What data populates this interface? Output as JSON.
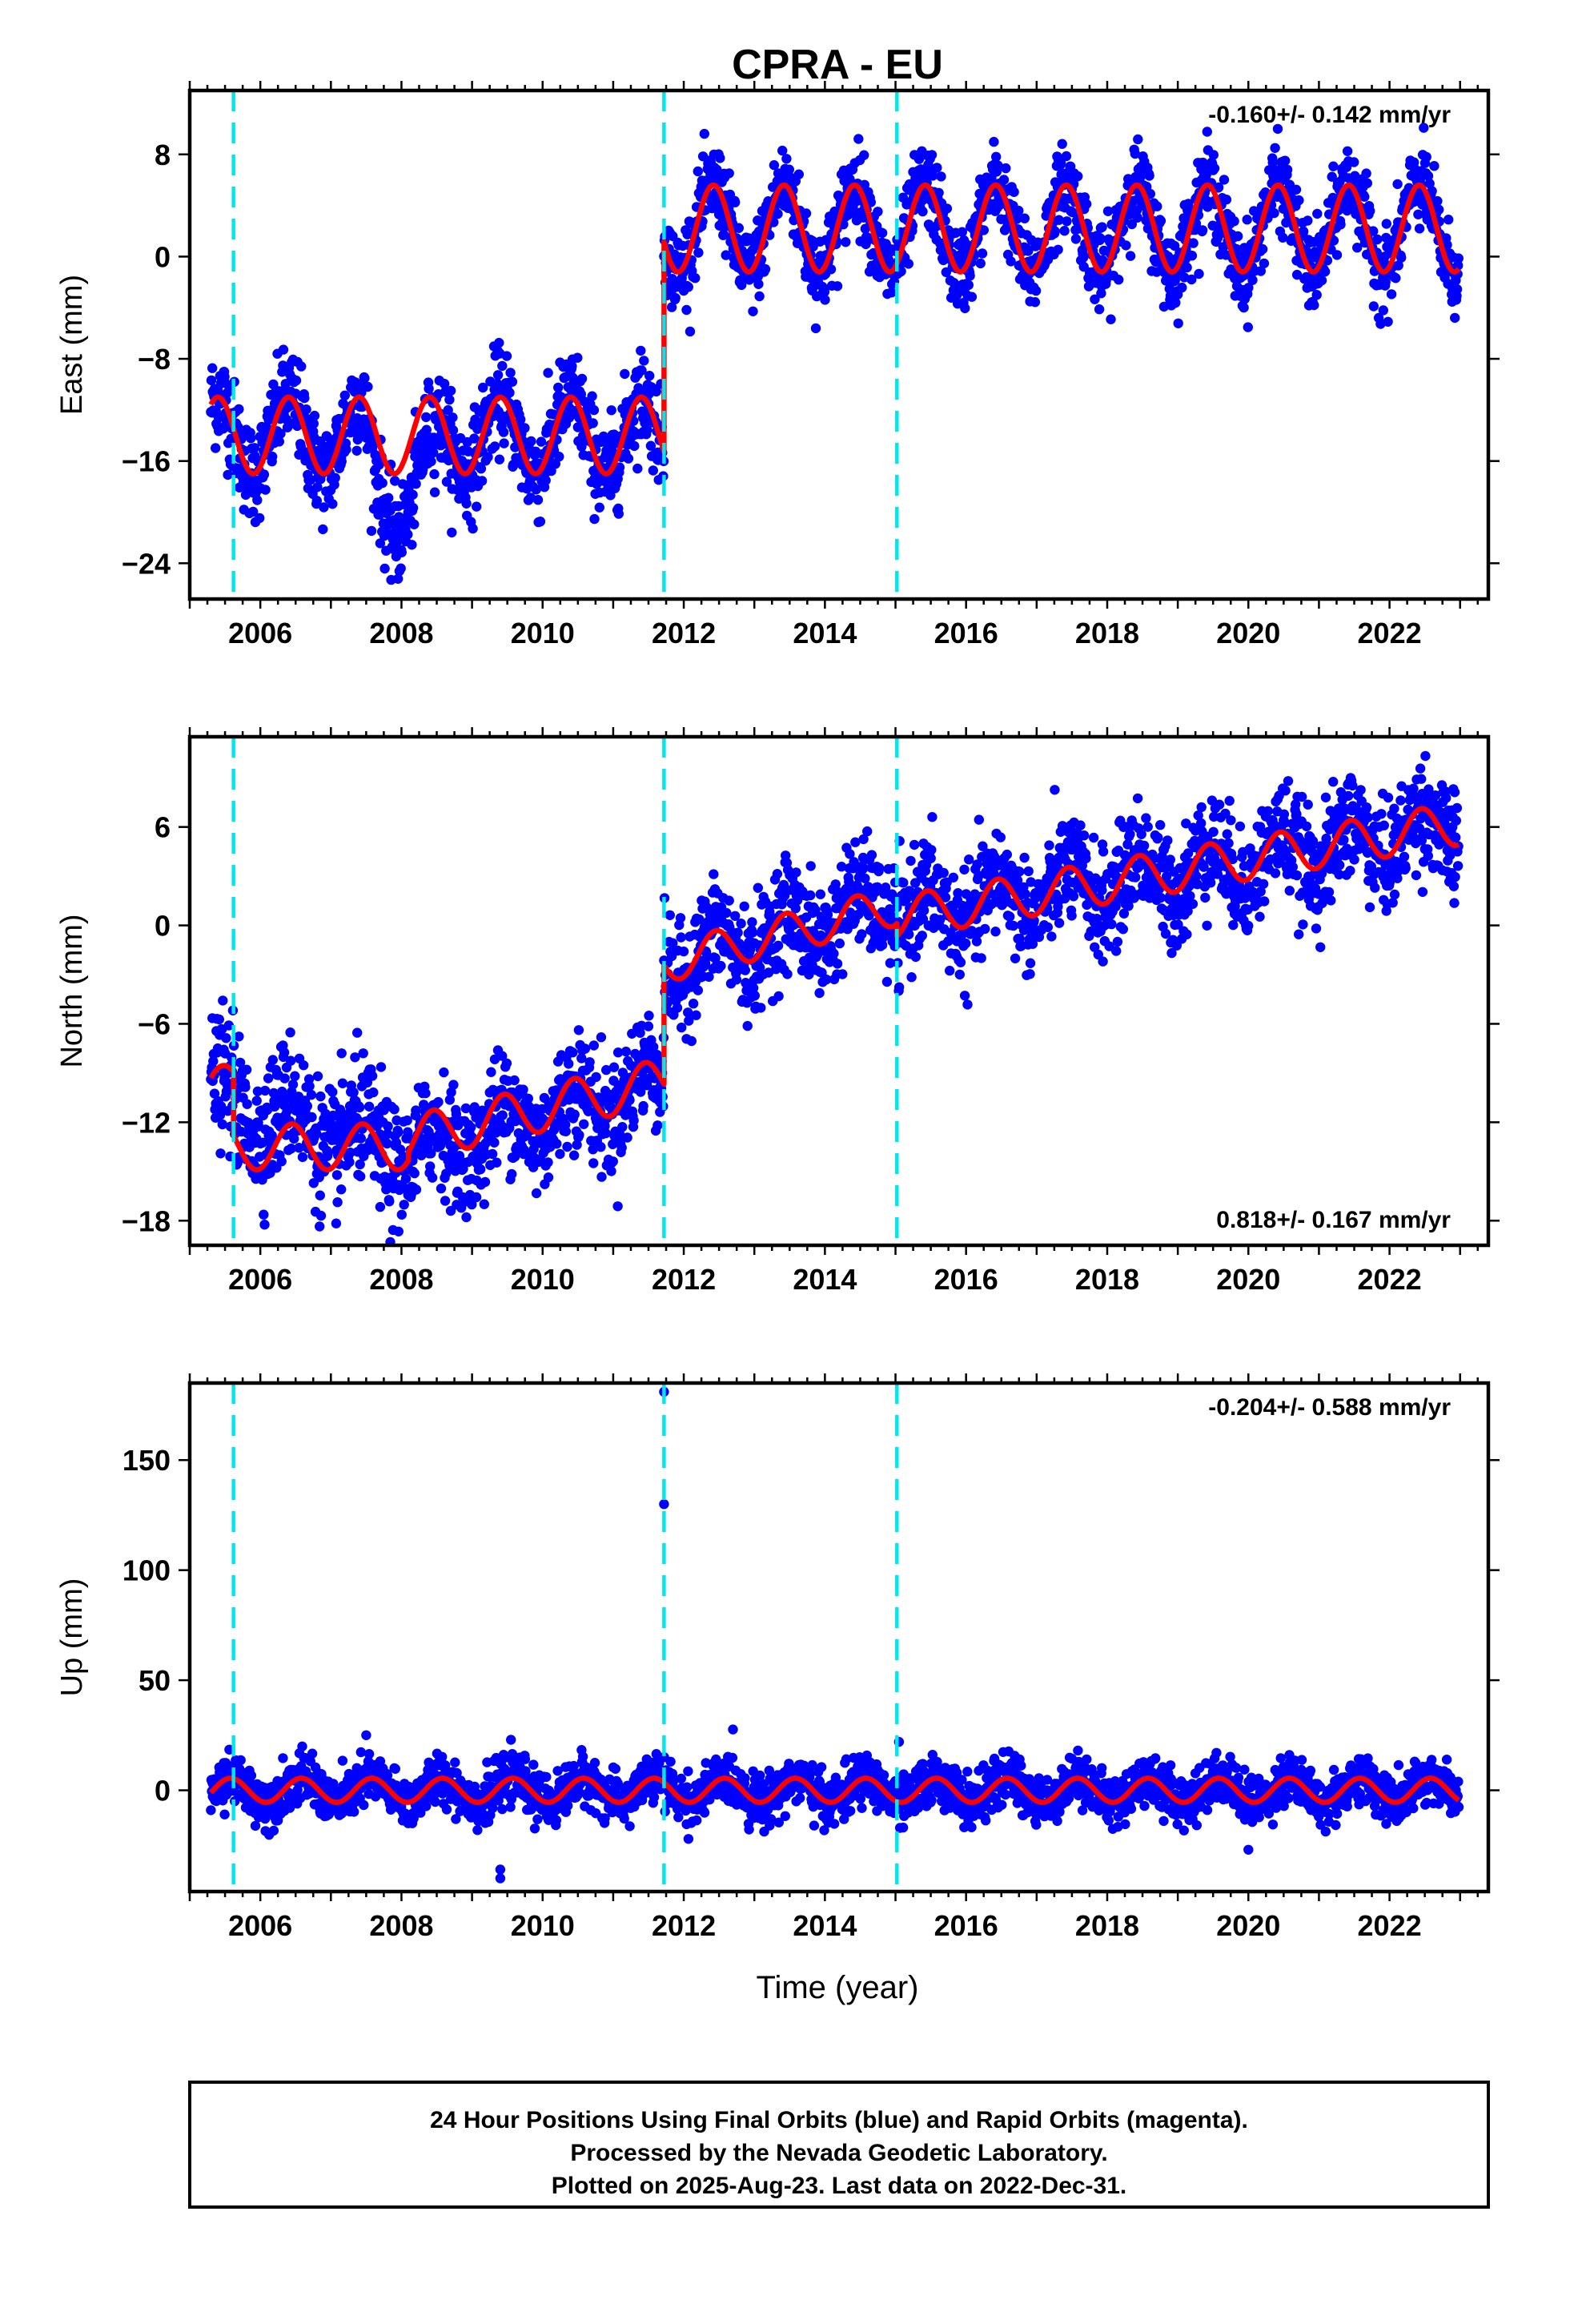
{
  "title": "CPRA - EU",
  "xlabel": "Time (year)",
  "colors": {
    "points": "#0000ff",
    "model": "#ff0000",
    "breaks": "#00e8ee",
    "frame": "#000000"
  },
  "x_ticks": [
    2006,
    2008,
    2010,
    2012,
    2014,
    2016,
    2018,
    2020,
    2022
  ],
  "caption": {
    "line1": "24 Hour Positions Using Final Orbits (blue) and Rapid Orbits (magenta).",
    "line2": "Processed by the Nevada Geodetic Laboratory.",
    "line3": "Plotted on 2025-Aug-23. Last data on 2022-Dec-31."
  },
  "chart_data": [
    {
      "type": "scatter",
      "ylabel": "East (mm)",
      "rate_text": "-0.160+/- 0.142 mm/yr",
      "rate_position": "top-right",
      "xlim": [
        2005.0,
        2023.4
      ],
      "ylim": [
        -26.8,
        13.0
      ],
      "y_ticks": [
        8,
        0,
        -8,
        -16,
        -24
      ],
      "breaks": [
        2005.62,
        2011.72,
        2015.02
      ],
      "data_span": [
        2005.3,
        2022.98
      ],
      "grid": false,
      "series": [
        {
          "role": "daily positions",
          "color": "#0000ff",
          "segments": [
            {
              "from": 2005.3,
              "to": 2011.72,
              "offset": -14.0,
              "amplitude": 3.0,
              "peak_phase": 0.4,
              "noise": 1.9
            },
            {
              "from": 2011.72,
              "to": 2022.98,
              "offset": 2.2,
              "amplitude": 3.4,
              "peak_phase": 0.42,
              "noise": 1.6
            }
          ],
          "anomaly": {
            "from": 2007.4,
            "to": 2008.6,
            "shift": -5.0,
            "note": "2008 excursion down to about -26"
          }
        },
        {
          "role": "model fit",
          "color": "#ff0000",
          "segments": [
            {
              "from": 2005.3,
              "to": 2011.72,
              "offset": -14.0,
              "amplitude": 3.0,
              "peak_phase": 0.4
            },
            {
              "from": 2011.72,
              "to": 2022.98,
              "offset": 2.2,
              "amplitude": 3.4,
              "peak_phase": 0.42
            }
          ]
        }
      ]
    },
    {
      "type": "scatter",
      "ylabel": "North (mm)",
      "rate_text": "0.818+/- 0.167 mm/yr",
      "rate_position": "bottom-right",
      "xlim": [
        2005.0,
        2023.4
      ],
      "ylim": [
        -19.5,
        11.5
      ],
      "y_ticks": [
        6,
        0,
        -6,
        -12,
        -18
      ],
      "breaks": [
        2005.62,
        2011.72,
        2015.02
      ],
      "data_span": [
        2005.3,
        2022.98
      ],
      "grid": false,
      "series": [
        {
          "role": "daily positions",
          "color": "#0000ff",
          "segments": [
            {
              "from": 2005.3,
              "to": 2008.1,
              "start_value": -10.5,
              "end_value": -14.0,
              "amplitude": 1.4,
              "peak_phase": 0.45,
              "noise": 1.9
            },
            {
              "from": 2008.1,
              "to": 2011.72,
              "start_value": -14.0,
              "end_value": -9.5,
              "amplitude": 1.4,
              "peak_phase": 0.45,
              "noise": 1.7
            },
            {
              "from": 2011.72,
              "to": 2015.02,
              "start_value": -2.5,
              "end_value": 1.5,
              "amplitude": 1.3,
              "peak_phase": 0.45,
              "noise": 1.6
            },
            {
              "from": 2015.02,
              "to": 2022.98,
              "start_value": 0.5,
              "end_value": 6.0,
              "amplitude": 1.4,
              "peak_phase": 0.45,
              "noise": 1.6
            }
          ]
        },
        {
          "role": "model fit",
          "color": "#ff0000",
          "segments": [
            {
              "from": 2005.3,
              "to": 2005.62,
              "start_value": -10.0,
              "end_value": -9.5,
              "amplitude": 1.2,
              "peak_phase": 0.45
            },
            {
              "from": 2005.62,
              "to": 2008.1,
              "start_value": -13.5,
              "end_value": -13.5,
              "amplitude": 1.4,
              "peak_phase": 0.45
            },
            {
              "from": 2008.1,
              "to": 2011.72,
              "start_value": -13.0,
              "end_value": -9.5,
              "amplitude": 1.4,
              "peak_phase": 0.45
            },
            {
              "from": 2011.72,
              "to": 2015.02,
              "start_value": -2.3,
              "end_value": 1.2,
              "amplitude": 1.2,
              "peak_phase": 0.45
            },
            {
              "from": 2015.02,
              "to": 2022.98,
              "start_value": 0.5,
              "end_value": 6.2,
              "amplitude": 1.3,
              "peak_phase": 0.45
            }
          ]
        }
      ]
    },
    {
      "type": "scatter",
      "ylabel": "Up (mm)",
      "rate_text": "-0.204+/- 0.588 mm/yr",
      "rate_position": "top-right",
      "xlim": [
        2005.0,
        2023.4
      ],
      "ylim": [
        -46,
        185
      ],
      "y_ticks": [
        150,
        100,
        50,
        0
      ],
      "breaks": [
        2005.62,
        2011.72,
        2015.02
      ],
      "data_span": [
        2005.3,
        2022.98
      ],
      "grid": false,
      "series": [
        {
          "role": "daily positions",
          "color": "#0000ff",
          "segments": [
            {
              "from": 2005.3,
              "to": 2022.98,
              "offset": 0.0,
              "amplitude": 5.5,
              "peak_phase": 0.58,
              "noise": 5.5
            }
          ],
          "outliers": [
            [
              2011.72,
              181
            ],
            [
              2011.72,
              130
            ],
            [
              2009.4,
              -36
            ],
            [
              2009.4,
              -40
            ],
            [
              2020.0,
              -27
            ],
            [
              2015.05,
              22
            ],
            [
              2007.5,
              25
            ]
          ]
        },
        {
          "role": "model fit",
          "color": "#ff0000",
          "segments": [
            {
              "from": 2005.3,
              "to": 2022.98,
              "offset": 0.0,
              "amplitude": 5.5,
              "peak_phase": 0.58
            }
          ]
        }
      ]
    }
  ]
}
